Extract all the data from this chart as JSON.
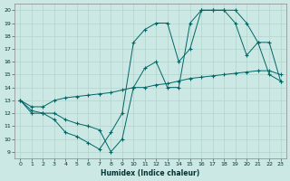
{
  "xlabel": "Humidex (Indice chaleur)",
  "ylabel": "",
  "xlim": [
    -0.5,
    23.5
  ],
  "ylim": [
    8.5,
    20.5
  ],
  "xticks": [
    0,
    1,
    2,
    3,
    4,
    5,
    6,
    7,
    8,
    9,
    10,
    11,
    12,
    13,
    14,
    15,
    16,
    17,
    18,
    19,
    20,
    21,
    22,
    23
  ],
  "yticks": [
    9,
    10,
    11,
    12,
    13,
    14,
    15,
    16,
    17,
    18,
    19,
    20
  ],
  "bg_color": "#cce8e4",
  "grid_color": "#b0d4cc",
  "line_color": "#006666",
  "line1_x": [
    0,
    1,
    2,
    3,
    4,
    5,
    6,
    7,
    8,
    9,
    10,
    11,
    12,
    13,
    14,
    15,
    16,
    17,
    18,
    19,
    20,
    21,
    22,
    23
  ],
  "line1_y": [
    13,
    12,
    12,
    11.5,
    10.5,
    10.2,
    9.7,
    9.2,
    10.5,
    12,
    17.5,
    18.5,
    19,
    19,
    16,
    17,
    20,
    20,
    20,
    19,
    16.5,
    17.5,
    15,
    14.5
  ],
  "line2_x": [
    0,
    1,
    2,
    3,
    4,
    5,
    6,
    7,
    8,
    9,
    10,
    11,
    12,
    13,
    14,
    15,
    16,
    17,
    18,
    19,
    20,
    21,
    22,
    23
  ],
  "line2_y": [
    13,
    12.2,
    12,
    12,
    11.5,
    11.2,
    11,
    10.7,
    9,
    10,
    14,
    15.5,
    16,
    14,
    14,
    19,
    20,
    20,
    20,
    20,
    19,
    17.5,
    17.5,
    14.5
  ],
  "line3_x": [
    0,
    1,
    2,
    3,
    4,
    5,
    6,
    7,
    8,
    9,
    10,
    11,
    12,
    13,
    14,
    15,
    16,
    17,
    18,
    19,
    20,
    21,
    22,
    23
  ],
  "line3_y": [
    13,
    12.5,
    12.5,
    13,
    13.2,
    13.3,
    13.4,
    13.5,
    13.6,
    13.8,
    14,
    14,
    14.2,
    14.3,
    14.5,
    14.7,
    14.8,
    14.9,
    15,
    15.1,
    15.2,
    15.3,
    15.3,
    15
  ]
}
